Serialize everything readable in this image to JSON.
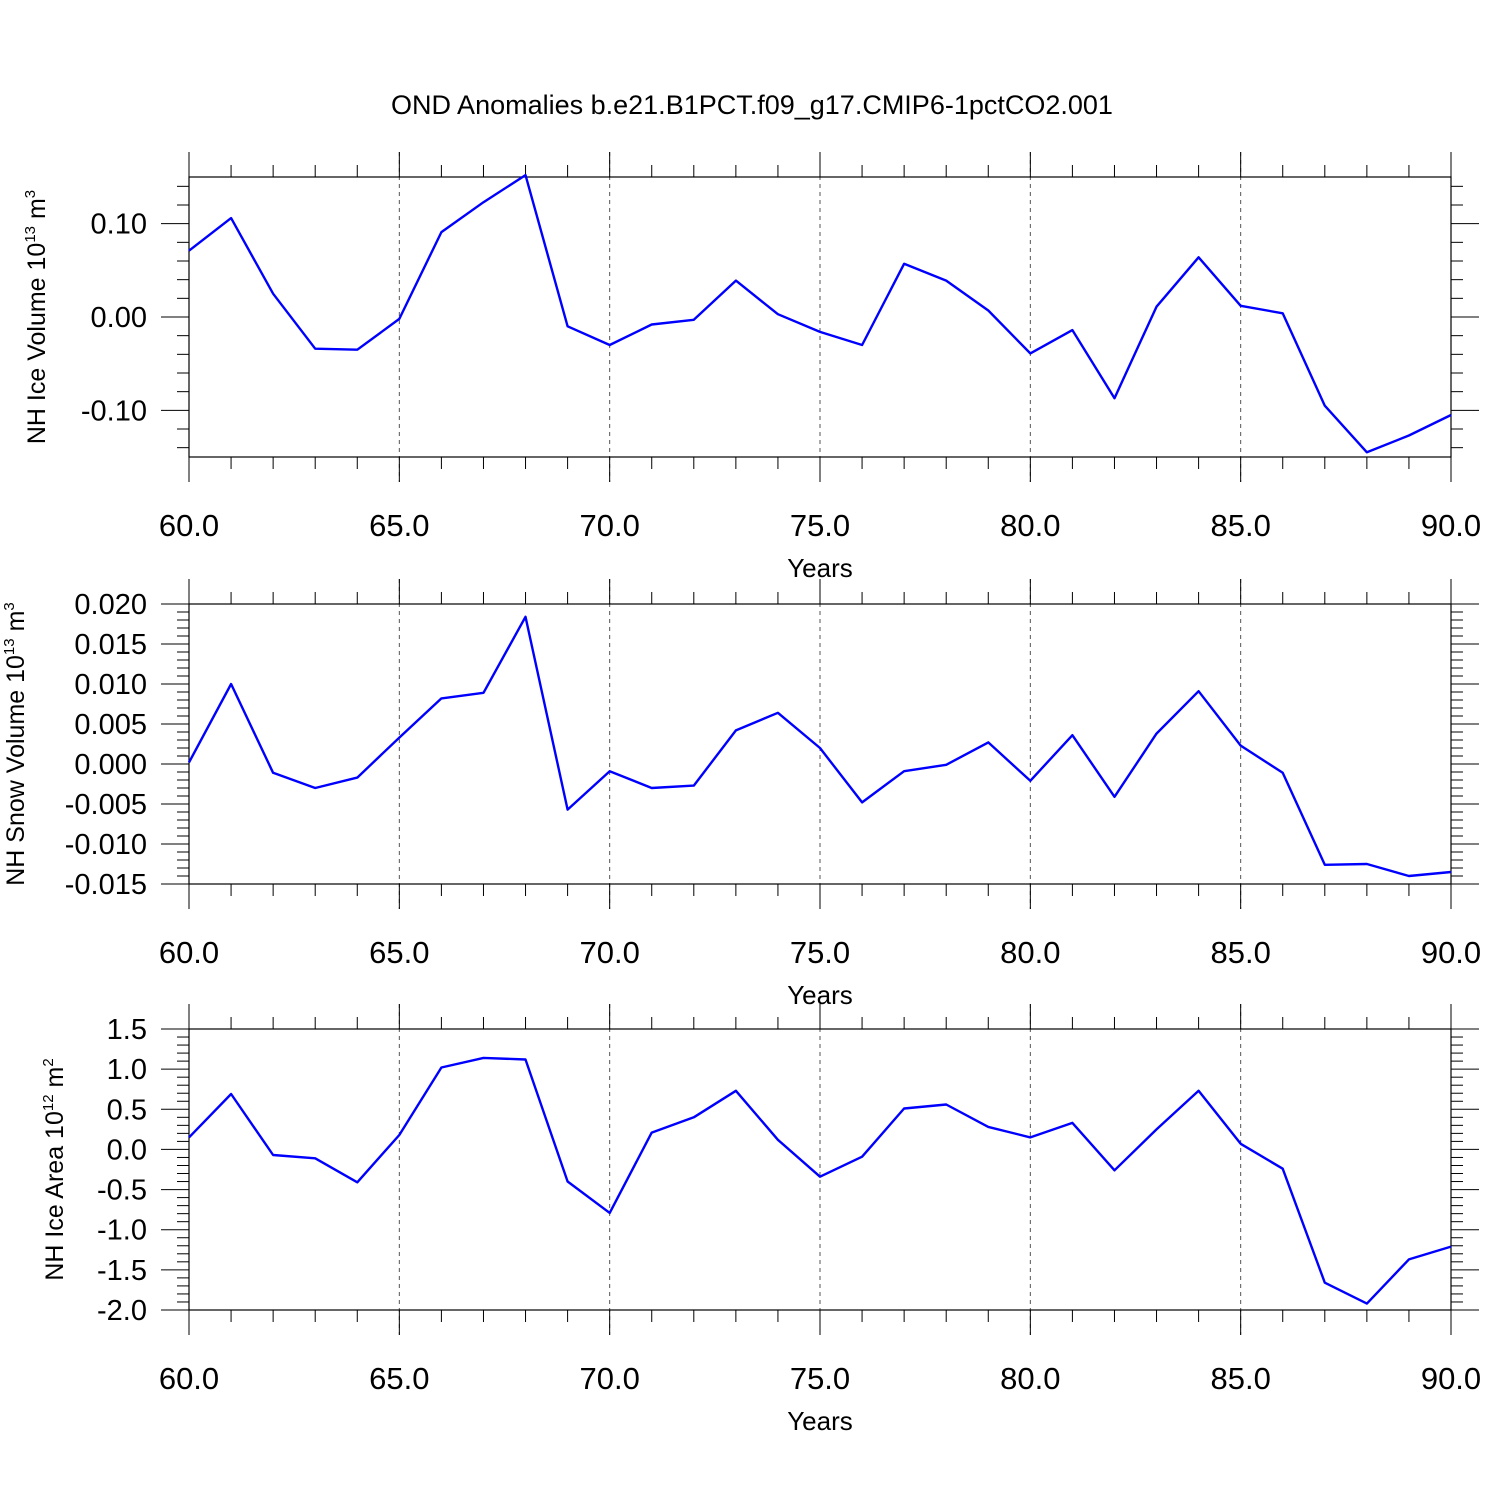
{
  "title": "OND Anomalies b.e21.B1PCT.f09_g17.CMIP6-1pctCO2.001",
  "colors": {
    "line": "#0000ff",
    "frame": "#000000",
    "grid": "#555555"
  },
  "chart_data": [
    {
      "type": "line",
      "xlabel": "Years",
      "ylabel_main": "NH Ice Volume 10",
      "ylabel_exp": "13",
      "ylabel_unit": " m",
      "ylabel_unit_exp": "3",
      "xlim": [
        60,
        90
      ],
      "ylim": [
        -0.15,
        0.15
      ],
      "xticks": [
        60,
        65,
        70,
        75,
        80,
        85,
        90
      ],
      "xtick_labels": [
        "60.0",
        "65.0",
        "70.0",
        "75.0",
        "80.0",
        "85.0",
        "90.0"
      ],
      "yticks": [
        -0.1,
        0.0,
        0.1
      ],
      "ytick_labels": [
        "-0.10",
        "0.00",
        "0.10"
      ],
      "grid": "vertical dashed at major x ticks",
      "x": [
        60,
        61,
        62,
        63,
        64,
        65,
        66,
        67,
        68,
        69,
        70,
        71,
        72,
        73,
        74,
        75,
        76,
        77,
        78,
        79,
        80,
        81,
        82,
        83,
        84,
        85,
        86,
        87,
        88,
        89,
        90
      ],
      "y": [
        0.071,
        0.106,
        0.025,
        -0.034,
        -0.035,
        -0.002,
        0.091,
        0.123,
        0.152,
        -0.01,
        -0.03,
        -0.008,
        -0.003,
        0.039,
        0.003,
        -0.016,
        -0.03,
        0.057,
        0.039,
        0.007,
        -0.039,
        -0.014,
        -0.087,
        0.011,
        0.064,
        0.012,
        0.004,
        -0.095,
        -0.145,
        -0.127,
        -0.105
      ]
    },
    {
      "type": "line",
      "xlabel": "Years",
      "ylabel_main": "NH Snow Volume 10",
      "ylabel_exp": "13",
      "ylabel_unit": " m",
      "ylabel_unit_exp": "3",
      "xlim": [
        60,
        90
      ],
      "ylim": [
        -0.015,
        0.02
      ],
      "xticks": [
        60,
        65,
        70,
        75,
        80,
        85,
        90
      ],
      "xtick_labels": [
        "60.0",
        "65.0",
        "70.0",
        "75.0",
        "80.0",
        "85.0",
        "90.0"
      ],
      "yticks": [
        -0.015,
        -0.01,
        -0.005,
        0.0,
        0.005,
        0.01,
        0.015,
        0.02
      ],
      "ytick_labels": [
        "-0.015",
        "-0.010",
        "-0.005",
        "0.000",
        "0.005",
        "0.010",
        "0.015",
        "0.020"
      ],
      "grid": "vertical dashed at major x ticks",
      "x": [
        60,
        61,
        62,
        63,
        64,
        65,
        66,
        67,
        68,
        69,
        70,
        71,
        72,
        73,
        74,
        75,
        76,
        77,
        78,
        79,
        80,
        81,
        82,
        83,
        84,
        85,
        86,
        87,
        88,
        89,
        90
      ],
      "y": [
        0.0002,
        0.01,
        -0.0011,
        -0.003,
        -0.0017,
        0.0033,
        0.0082,
        0.0089,
        0.0184,
        -0.0057,
        -0.0009,
        -0.003,
        -0.0027,
        0.0042,
        0.0064,
        0.002,
        -0.0048,
        -0.0009,
        -0.0001,
        0.0027,
        -0.0021,
        0.0036,
        -0.0041,
        0.0038,
        0.0091,
        0.0023,
        -0.0011,
        -0.0126,
        -0.0125,
        -0.014,
        -0.0135
      ]
    },
    {
      "type": "line",
      "xlabel": "Years",
      "ylabel_main": "NH Ice Area 10",
      "ylabel_exp": "12",
      "ylabel_unit": " m",
      "ylabel_unit_exp": "2",
      "xlim": [
        60,
        90
      ],
      "ylim": [
        -2.0,
        1.5
      ],
      "xticks": [
        60,
        65,
        70,
        75,
        80,
        85,
        90
      ],
      "xtick_labels": [
        "60.0",
        "65.0",
        "70.0",
        "75.0",
        "80.0",
        "85.0",
        "90.0"
      ],
      "yticks": [
        -2.0,
        -1.5,
        -1.0,
        -0.5,
        0.0,
        0.5,
        1.0,
        1.5
      ],
      "ytick_labels": [
        "-2.0",
        "-1.5",
        "-1.0",
        "-0.5",
        "0.0",
        "0.5",
        "1.0",
        "1.5"
      ],
      "grid": "vertical dashed at major x ticks",
      "x": [
        60,
        61,
        62,
        63,
        64,
        65,
        66,
        67,
        68,
        69,
        70,
        71,
        72,
        73,
        74,
        75,
        76,
        77,
        78,
        79,
        80,
        81,
        82,
        83,
        84,
        85,
        86,
        87,
        88,
        89,
        90
      ],
      "y": [
        0.15,
        0.69,
        -0.07,
        -0.11,
        -0.41,
        0.18,
        1.02,
        1.14,
        1.12,
        -0.4,
        -0.79,
        0.21,
        0.4,
        0.73,
        0.12,
        -0.34,
        -0.09,
        0.51,
        0.56,
        0.28,
        0.15,
        0.33,
        -0.26,
        0.25,
        0.73,
        0.07,
        -0.24,
        -1.66,
        -1.92,
        -1.37,
        -1.21
      ]
    }
  ]
}
